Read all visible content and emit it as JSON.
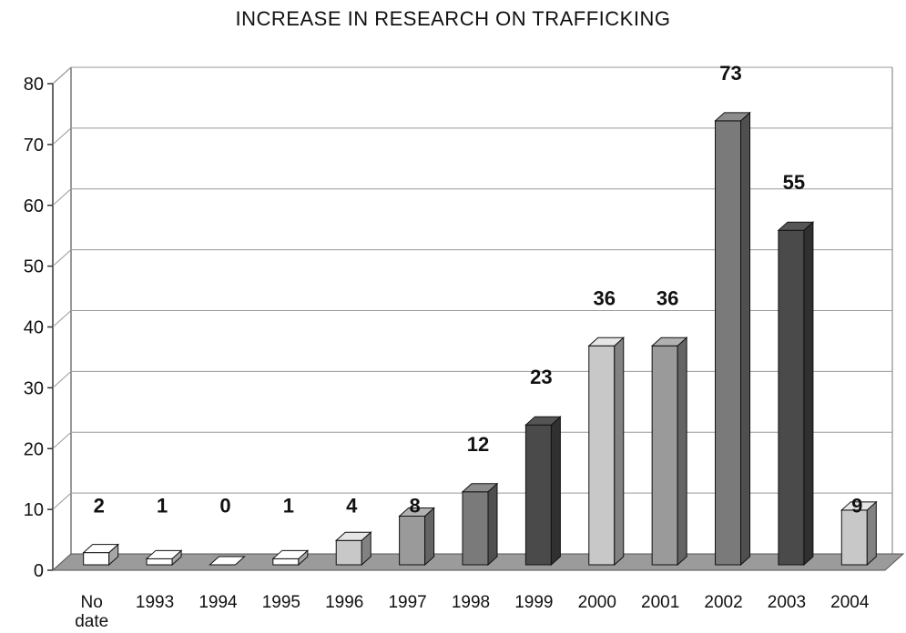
{
  "chart_data": {
    "type": "bar",
    "title": "INCREASE IN RESEARCH ON TRAFFICKING",
    "xlabel": "",
    "ylabel": "",
    "categories": [
      "No date",
      "1993",
      "1994",
      "1995",
      "1996",
      "1997",
      "1998",
      "1999",
      "2000",
      "2001",
      "2002",
      "2003",
      "2004"
    ],
    "values": [
      2,
      1,
      0,
      1,
      4,
      8,
      12,
      23,
      36,
      36,
      73,
      55,
      9
    ],
    "bar_colors": [
      "#ffffff",
      "#ffffff",
      "#ffffff",
      "#ffffff",
      "#c8c8c8",
      "#9a9a9a",
      "#7a7a7a",
      "#4a4a4a",
      "#c8c8c8",
      "#9a9a9a",
      "#7a7a7a",
      "#4a4a4a",
      "#c8c8c8"
    ],
    "ylim": [
      0,
      80
    ],
    "yticks": [
      0,
      10,
      20,
      30,
      40,
      50,
      60,
      70,
      80
    ],
    "grid": true,
    "style": "3d",
    "legend": "none"
  }
}
